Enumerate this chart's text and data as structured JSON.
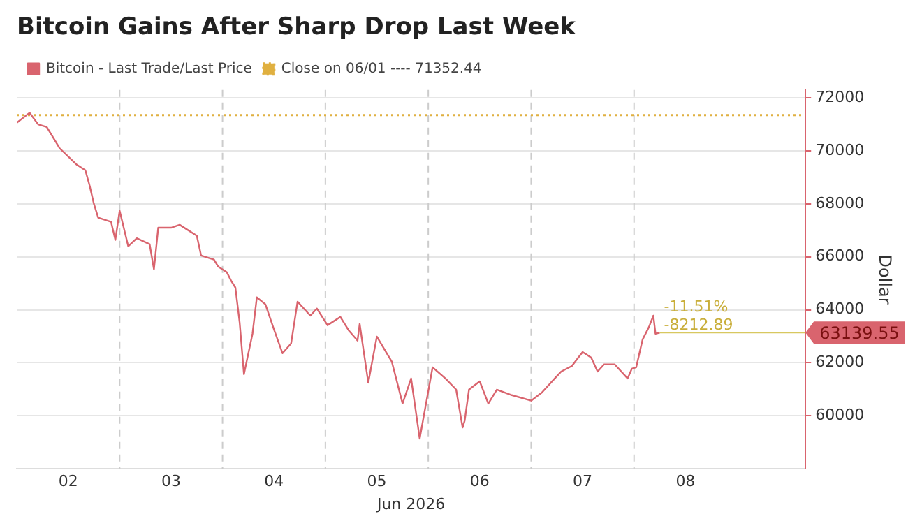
{
  "chart_data": {
    "type": "line",
    "title": "Bitcoin Gains After Sharp Drop Last Week",
    "xlabel": "Jun 2026",
    "ylabel": "Dollar",
    "xlim": [
      "2026-06-02T00:00",
      "2026-06-09T16:00"
    ],
    "xticks": [
      {
        "value": "2026-06-02T12:00",
        "label": "02"
      },
      {
        "value": "2026-06-03T12:00",
        "label": "03"
      },
      {
        "value": "2026-06-04T12:00",
        "label": "04"
      },
      {
        "value": "2026-06-05T12:00",
        "label": "05"
      },
      {
        "value": "2026-06-06T12:00",
        "label": "06"
      },
      {
        "value": "2026-06-07T12:00",
        "label": "07"
      },
      {
        "value": "2026-06-08T12:00",
        "label": "08"
      }
    ],
    "ylim": [
      58000,
      72300
    ],
    "yticks": [
      60000,
      62000,
      64000,
      66000,
      68000,
      70000,
      72000
    ],
    "grid": "y",
    "legend": "top left",
    "marker": "none",
    "series": [
      {
        "name": "Bitcoin - Last Trade/Last Price",
        "color": "#d9646e",
        "line_style": "solid",
        "x": [
          "2026-06-02T00:00",
          "2026-06-02T03:00",
          "2026-06-02T05:00",
          "2026-06-02T07:00",
          "2026-06-02T10:00",
          "2026-06-02T14:00",
          "2026-06-02T16:00",
          "2026-06-02T17:00",
          "2026-06-02T18:00",
          "2026-06-02T19:00",
          "2026-06-02T22:00",
          "2026-06-02T23:00",
          "2026-06-03T00:00",
          "2026-06-03T02:00",
          "2026-06-03T04:00",
          "2026-06-03T07:00",
          "2026-06-03T08:00",
          "2026-06-03T09:00",
          "2026-06-03T12:00",
          "2026-06-03T14:00",
          "2026-06-03T18:00",
          "2026-06-03T19:00",
          "2026-06-03T22:00",
          "2026-06-03T23:00",
          "2026-06-04T01:00",
          "2026-06-04T02:00",
          "2026-06-04T03:00",
          "2026-06-04T04:00",
          "2026-06-04T05:00",
          "2026-06-04T07:00",
          "2026-06-04T08:00",
          "2026-06-04T10:00",
          "2026-06-04T12:00",
          "2026-06-04T14:00",
          "2026-06-04T16:00",
          "2026-06-04T17:30",
          "2026-06-04T20:30",
          "2026-06-04T22:00",
          "2026-06-05T00:30",
          "2026-06-05T03:30",
          "2026-06-05T05:30",
          "2026-06-05T07:30",
          "2026-06-05T08:00",
          "2026-06-05T10:00",
          "2026-06-05T12:00",
          "2026-06-05T15:30",
          "2026-06-05T16:30",
          "2026-06-05T18:00",
          "2026-06-05T20:00",
          "2026-06-05T22:00",
          "2026-06-06T01:00",
          "2026-06-06T04:00",
          "2026-06-06T06:30",
          "2026-06-06T08:00",
          "2026-06-06T08:30",
          "2026-06-06T09:30",
          "2026-06-06T12:00",
          "2026-06-06T14:00",
          "2026-06-06T16:00",
          "2026-06-06T19:30",
          "2026-06-07T00:00",
          "2026-06-07T02:30",
          "2026-06-07T05:30",
          "2026-06-07T07:00",
          "2026-06-07T09:30",
          "2026-06-07T12:00",
          "2026-06-07T14:00",
          "2026-06-07T15:30",
          "2026-06-07T17:00",
          "2026-06-07T19:30",
          "2026-06-07T22:30",
          "2026-06-07T23:30",
          "2026-06-08T00:30",
          "2026-06-08T02:00",
          "2026-06-08T03:30",
          "2026-06-08T04:30",
          "2026-06-08T05:00",
          "2026-06-08T06:00"
        ],
        "values": [
          71060,
          71440,
          71000,
          70900,
          70100,
          69480,
          69270,
          68690,
          68000,
          67480,
          67320,
          66640,
          67740,
          66400,
          66700,
          66480,
          65530,
          67100,
          67100,
          67210,
          66800,
          66050,
          65900,
          65630,
          65420,
          65100,
          64840,
          63520,
          61570,
          63100,
          64470,
          64210,
          63260,
          62360,
          62730,
          64310,
          63780,
          64050,
          63420,
          63730,
          63210,
          62840,
          63470,
          61250,
          62990,
          62040,
          61410,
          60460,
          61410,
          59140,
          61830,
          61410,
          60990,
          59560,
          59820,
          60990,
          61300,
          60460,
          60990,
          60780,
          60570,
          60880,
          61410,
          61670,
          61880,
          62410,
          62200,
          61670,
          61940,
          61940,
          61410,
          61780,
          61830,
          62880,
          63360,
          63780,
          63100,
          63139.55
        ],
        "value_labels": [
          null,
          null,
          null,
          null,
          null,
          null,
          null,
          null,
          null,
          null,
          null,
          null,
          null,
          null,
          null,
          null,
          null,
          null,
          null,
          null,
          null,
          null,
          null,
          null,
          null,
          null,
          null,
          null,
          null,
          null,
          null,
          null,
          null,
          null,
          null,
          null,
          null,
          null,
          null,
          null,
          null,
          null,
          null,
          null,
          null,
          null,
          null,
          null,
          null,
          null,
          null,
          null,
          null,
          null,
          null,
          null,
          null,
          null,
          null,
          null,
          null,
          null,
          null,
          null,
          null,
          null,
          null,
          null,
          null,
          null,
          null,
          null,
          null,
          null,
          null,
          null,
          null,
          "63139.55"
        ]
      },
      {
        "name": "Close on 06/01 ---- 71352.44",
        "color": "#e0b040",
        "line_style": "dotted",
        "x": [
          "2026-06-02T00:00",
          "2026-06-09T16:00"
        ],
        "values": [
          71352.44,
          71352.44
        ]
      }
    ],
    "ref_lines": [
      {
        "axis": "x",
        "value": "2026-06-03T00:00",
        "line_style": "dashed",
        "color": "#cccccc"
      },
      {
        "axis": "x",
        "value": "2026-06-04T00:00",
        "line_style": "dashed",
        "color": "#cccccc"
      },
      {
        "axis": "x",
        "value": "2026-06-05T00:00",
        "line_style": "dashed",
        "color": "#cccccc"
      },
      {
        "axis": "x",
        "value": "2026-06-06T00:00",
        "line_style": "dashed",
        "color": "#cccccc"
      },
      {
        "axis": "x",
        "value": "2026-06-07T00:00",
        "line_style": "dashed",
        "color": "#cccccc"
      },
      {
        "axis": "x",
        "value": "2026-06-08T00:00",
        "line_style": "dashed",
        "color": "#cccccc"
      }
    ],
    "annotations": [
      {
        "text": "-11.51%",
        "x": "2026-06-08T06:00",
        "y": 63139.55
      },
      {
        "text": "-8212.89",
        "x": "2026-06-08T06:00",
        "y": 63139.55
      }
    ]
  }
}
